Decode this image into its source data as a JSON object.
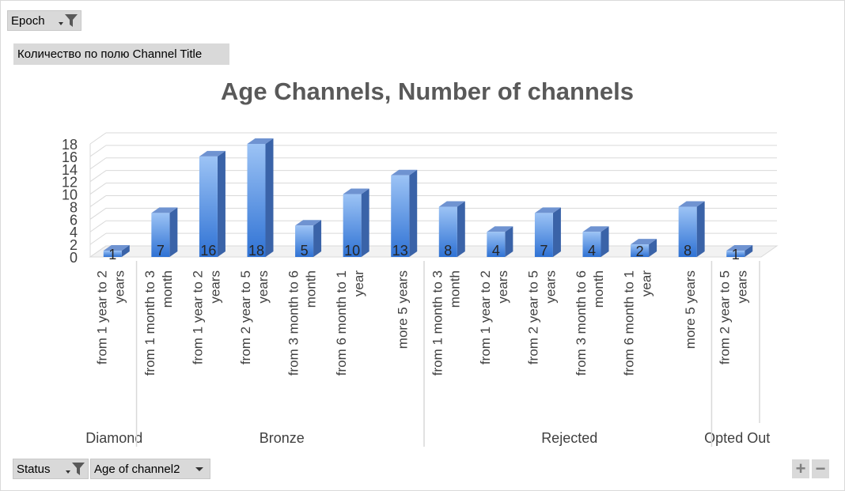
{
  "filters": {
    "epoch": {
      "label": "Epoch"
    },
    "values_field": "Количество по полю Channel Title",
    "status": {
      "label": "Status"
    },
    "age": {
      "label": "Age of channel2"
    }
  },
  "colors": {
    "bar_front_top": "#9cc3f5",
    "bar_front_bottom": "#2f72d4",
    "bar_side": "#3a63a8",
    "bar_top": "#6f93d1",
    "grid": "#d9d9d9",
    "text": "#404040",
    "title": "#595959"
  },
  "zoom": {
    "plus": "+",
    "minus": "−"
  },
  "chart_data": {
    "type": "bar",
    "title": "Age Channels, Number of channels",
    "xlabel": "",
    "ylabel": "",
    "ylim": [
      0,
      18
    ],
    "yticks": [
      0,
      2,
      4,
      6,
      8,
      10,
      12,
      14,
      16,
      18
    ],
    "grid": true,
    "style": "3d-column",
    "groups": [
      {
        "name": "Diamond",
        "categories": [
          "from 1 year to 2 years"
        ],
        "values": [
          1
        ]
      },
      {
        "name": "Bronze",
        "categories": [
          "from 1 month to 3 month",
          "from 1 year to 2 years",
          "from 2 year to 5 years",
          "from 3 month to 6 month",
          "from 6 month to 1 year",
          "more 5 years"
        ],
        "values": [
          7,
          16,
          18,
          5,
          10,
          13
        ]
      },
      {
        "name": "Rejected",
        "categories": [
          "from 1 month to 3 month",
          "from 1 year to 2 years",
          "from 2 year to 5 years",
          "from 3 month to 6 month",
          "from 6 month to 1 year",
          "more 5 years"
        ],
        "values": [
          8,
          4,
          7,
          4,
          2,
          8
        ]
      },
      {
        "name": "Opted Out",
        "categories": [
          "from 2 year to 5 years"
        ],
        "values": [
          1
        ]
      }
    ]
  }
}
